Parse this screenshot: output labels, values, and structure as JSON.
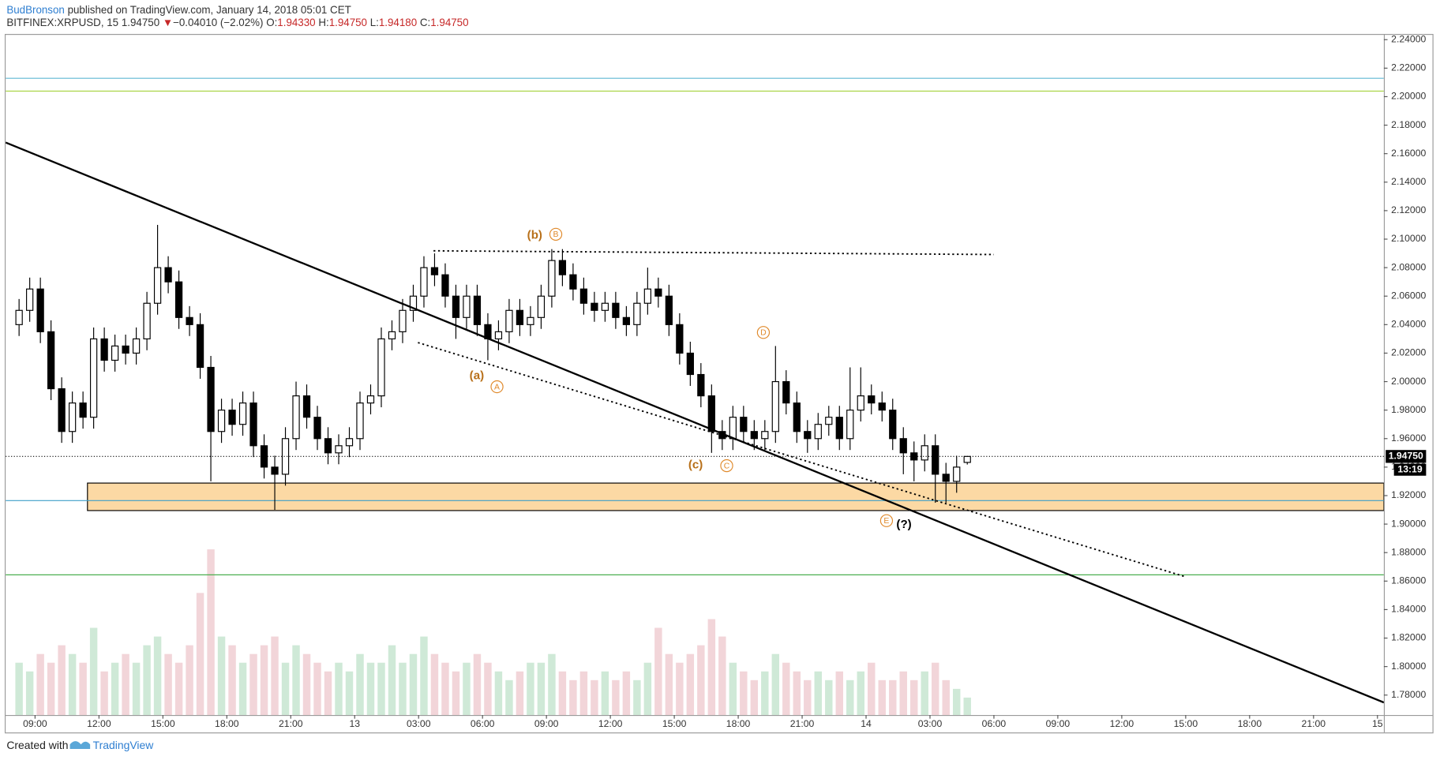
{
  "header": {
    "author": "BudBronson",
    "published": "published on TradingView.com, January 14, 2018 05:01 CET",
    "symbol": "BITFINEX:XRPUSD, 15",
    "last": "1.94750",
    "arrow": "▼",
    "change": "−0.04010 (−2.02%)",
    "ohlc": [
      {
        "label": "O:",
        "value": "1.94330"
      },
      {
        "label": "H:",
        "value": "1.94750"
      },
      {
        "label": "L:",
        "value": "1.94180"
      },
      {
        "label": "C:",
        "value": "1.94750"
      }
    ]
  },
  "footer": {
    "created": "Created with",
    "brand": "TradingView"
  },
  "chart_data": {
    "type": "candlestick",
    "grid": false,
    "xlim": [
      7.62,
      72.3
    ],
    "ylim": [
      1.766,
      2.244
    ],
    "vlim": [
      0,
      100
    ],
    "xticks": [
      {
        "value": 9,
        "label": "09:00"
      },
      {
        "value": 12,
        "label": "12:00"
      },
      {
        "value": 15,
        "label": "15:00"
      },
      {
        "value": 18,
        "label": "18:00"
      },
      {
        "value": 21,
        "label": "21:00"
      },
      {
        "value": 24,
        "label": "13"
      },
      {
        "value": 27,
        "label": "03:00"
      },
      {
        "value": 30,
        "label": "06:00"
      },
      {
        "value": 33,
        "label": "09:00"
      },
      {
        "value": 36,
        "label": "12:00"
      },
      {
        "value": 39,
        "label": "15:00"
      },
      {
        "value": 42,
        "label": "18:00"
      },
      {
        "value": 45,
        "label": "21:00"
      },
      {
        "value": 48,
        "label": "14"
      },
      {
        "value": 51,
        "label": "03:00"
      },
      {
        "value": 54,
        "label": "06:00"
      },
      {
        "value": 57,
        "label": "09:00"
      },
      {
        "value": 60,
        "label": "12:00"
      },
      {
        "value": 63,
        "label": "15:00"
      },
      {
        "value": 66,
        "label": "18:00"
      },
      {
        "value": 69,
        "label": "21:00"
      },
      {
        "value": 72,
        "label": "15"
      }
    ],
    "yticks": [
      {
        "value": 2.24,
        "label": "2.24000"
      },
      {
        "value": 2.22,
        "label": "2.22000"
      },
      {
        "value": 2.2,
        "label": "2.20000"
      },
      {
        "value": 2.18,
        "label": "2.18000"
      },
      {
        "value": 2.16,
        "label": "2.16000"
      },
      {
        "value": 2.14,
        "label": "2.14000"
      },
      {
        "value": 2.12,
        "label": "2.12000"
      },
      {
        "value": 2.1,
        "label": "2.10000"
      },
      {
        "value": 2.08,
        "label": "2.08000"
      },
      {
        "value": 2.06,
        "label": "2.06000"
      },
      {
        "value": 2.04,
        "label": "2.04000"
      },
      {
        "value": 2.02,
        "label": "2.02000"
      },
      {
        "value": 2,
        "label": "2.00000"
      },
      {
        "value": 1.98,
        "label": "1.98000"
      },
      {
        "value": 1.96,
        "label": "1.96000"
      },
      {
        "value": 1.94,
        "label": "1.94000"
      },
      {
        "value": 1.92,
        "label": "1.92000"
      },
      {
        "value": 1.9,
        "label": "1.90000"
      },
      {
        "value": 1.88,
        "label": "1.88000"
      },
      {
        "value": 1.86,
        "label": "1.86000"
      },
      {
        "value": 1.84,
        "label": "1.84000"
      },
      {
        "value": 1.82,
        "label": "1.82000"
      },
      {
        "value": 1.8,
        "label": "1.80000"
      },
      {
        "value": 1.78,
        "label": "1.78000"
      }
    ],
    "up_color": "#ffffff",
    "down_color": "#000000",
    "wick_color": "#000000",
    "vol_up_color": "#cfe9d7",
    "vol_down_color": "#f2d5d9",
    "x": [
      8.25,
      8.75,
      9.25,
      9.75,
      10.25,
      10.75,
      11.25,
      11.75,
      12.25,
      12.75,
      13.25,
      13.75,
      14.25,
      14.75,
      15.25,
      15.75,
      16.25,
      16.75,
      17.25,
      17.75,
      18.25,
      18.75,
      19.25,
      19.75,
      20.25,
      20.75,
      21.25,
      21.75,
      22.25,
      22.75,
      23.25,
      23.75,
      24.25,
      24.75,
      25.25,
      25.75,
      26.25,
      26.75,
      27.25,
      27.75,
      28.25,
      28.75,
      29.25,
      29.75,
      30.25,
      30.75,
      31.25,
      31.75,
      32.25,
      32.75,
      33.25,
      33.75,
      34.25,
      34.75,
      35.25,
      35.75,
      36.25,
      36.75,
      37.25,
      37.75,
      38.25,
      38.75,
      39.25,
      39.75,
      40.25,
      40.75,
      41.25,
      41.75,
      42.25,
      42.75,
      43.25,
      43.75,
      44.25,
      44.75,
      45.25,
      45.75,
      46.25,
      46.75,
      47.25,
      47.75,
      48.25,
      48.75,
      49.25,
      49.75,
      50.25,
      50.75,
      51.25,
      51.75,
      52.25,
      52.75
    ],
    "open": [
      2.04,
      2.05,
      2.065,
      2.035,
      1.995,
      1.965,
      1.985,
      1.975,
      2.03,
      2.015,
      2.025,
      2.02,
      2.03,
      2.055,
      2.08,
      2.07,
      2.045,
      2.04,
      2.01,
      1.965,
      1.98,
      1.97,
      1.985,
      1.955,
      1.94,
      1.935,
      1.96,
      1.99,
      1.975,
      1.96,
      1.95,
      1.955,
      1.96,
      1.985,
      1.99,
      2.03,
      2.035,
      2.05,
      2.06,
      2.08,
      2.075,
      2.06,
      2.045,
      2.06,
      2.04,
      2.03,
      2.035,
      2.05,
      2.04,
      2.045,
      2.06,
      2.085,
      2.075,
      2.065,
      2.055,
      2.05,
      2.055,
      2.045,
      2.04,
      2.055,
      2.065,
      2.06,
      2.04,
      2.02,
      2.005,
      1.99,
      1.965,
      1.96,
      1.975,
      1.965,
      1.96,
      1.965,
      2.0,
      1.985,
      1.965,
      1.96,
      1.97,
      1.975,
      1.96,
      1.98,
      1.99,
      1.985,
      1.98,
      1.96,
      1.95,
      1.945,
      1.955,
      1.935,
      1.93,
      1.9433
    ],
    "high": [
      2.058,
      2.073,
      2.073,
      2.043,
      2.003,
      1.993,
      1.993,
      2.038,
      2.038,
      2.033,
      2.033,
      2.038,
      2.063,
      2.11,
      2.088,
      2.078,
      2.053,
      2.048,
      2.018,
      1.988,
      1.988,
      1.993,
      1.993,
      1.963,
      1.948,
      1.968,
      2.0,
      1.998,
      1.983,
      1.968,
      1.963,
      1.968,
      1.993,
      1.998,
      2.038,
      2.043,
      2.058,
      2.068,
      2.088,
      2.09,
      2.083,
      2.068,
      2.068,
      2.068,
      2.048,
      2.043,
      2.058,
      2.058,
      2.053,
      2.068,
      2.093,
      2.093,
      2.083,
      2.073,
      2.063,
      2.063,
      2.063,
      2.053,
      2.063,
      2.08,
      2.073,
      2.068,
      2.048,
      2.028,
      2.013,
      1.998,
      1.973,
      1.983,
      1.983,
      1.973,
      1.973,
      2.025,
      2.008,
      1.993,
      1.973,
      1.978,
      1.983,
      1.983,
      2.01,
      2.01,
      1.998,
      1.993,
      1.988,
      1.968,
      1.958,
      1.963,
      1.963,
      1.943,
      1.948,
      1.9475
    ],
    "low": [
      2.032,
      2.042,
      2.027,
      1.987,
      1.957,
      1.957,
      1.967,
      1.967,
      2.007,
      2.007,
      2.012,
      2.012,
      2.022,
      2.047,
      2.062,
      2.037,
      2.032,
      2.002,
      1.93,
      1.957,
      1.962,
      1.962,
      1.947,
      1.932,
      1.91,
      1.927,
      1.952,
      1.967,
      1.952,
      1.942,
      1.942,
      1.947,
      1.952,
      1.977,
      1.982,
      2.022,
      2.027,
      2.042,
      2.052,
      2.067,
      2.052,
      2.03,
      2.037,
      2.032,
      2.015,
      2.022,
      2.027,
      2.032,
      2.032,
      2.037,
      2.052,
      2.067,
      2.057,
      2.047,
      2.042,
      2.042,
      2.037,
      2.032,
      2.032,
      2.047,
      2.052,
      2.032,
      2.012,
      1.997,
      1.982,
      1.95,
      1.952,
      1.952,
      1.957,
      1.952,
      1.952,
      1.957,
      1.977,
      1.957,
      1.95,
      1.952,
      1.962,
      1.952,
      1.952,
      1.972,
      1.977,
      1.972,
      1.952,
      1.935,
      1.93,
      1.937,
      1.915,
      1.915,
      1.922,
      1.9418
    ],
    "close": [
      2.05,
      2.065,
      2.035,
      1.995,
      1.965,
      1.985,
      1.975,
      2.03,
      2.015,
      2.025,
      2.02,
      2.03,
      2.055,
      2.08,
      2.07,
      2.045,
      2.04,
      2.01,
      1.965,
      1.98,
      1.97,
      1.985,
      1.955,
      1.94,
      1.935,
      1.96,
      1.99,
      1.975,
      1.96,
      1.95,
      1.955,
      1.96,
      1.985,
      1.99,
      2.03,
      2.035,
      2.05,
      2.06,
      2.08,
      2.075,
      2.06,
      2.045,
      2.06,
      2.04,
      2.03,
      2.035,
      2.05,
      2.04,
      2.045,
      2.06,
      2.085,
      2.075,
      2.065,
      2.055,
      2.05,
      2.055,
      2.045,
      2.04,
      2.055,
      2.065,
      2.06,
      2.04,
      2.02,
      2.005,
      1.99,
      1.965,
      1.96,
      1.975,
      1.965,
      1.96,
      1.965,
      2.0,
      1.985,
      1.965,
      1.96,
      1.97,
      1.975,
      1.96,
      1.98,
      1.99,
      1.985,
      1.98,
      1.96,
      1.95,
      1.945,
      1.955,
      1.935,
      1.93,
      1.94,
      1.9475
    ],
    "volume": [
      30,
      25,
      35,
      30,
      40,
      35,
      30,
      50,
      25,
      30,
      35,
      30,
      40,
      45,
      35,
      30,
      40,
      70,
      95,
      45,
      40,
      30,
      35,
      40,
      45,
      30,
      40,
      35,
      30,
      25,
      30,
      25,
      35,
      30,
      30,
      40,
      30,
      35,
      45,
      35,
      30,
      25,
      30,
      35,
      30,
      25,
      20,
      25,
      30,
      30,
      35,
      25,
      20,
      25,
      20,
      25,
      20,
      25,
      20,
      30,
      50,
      35,
      30,
      35,
      40,
      55,
      45,
      30,
      25,
      20,
      25,
      35,
      30,
      25,
      20,
      25,
      20,
      25,
      20,
      25,
      30,
      20,
      20,
      25,
      20,
      25,
      30,
      20,
      15,
      10
    ],
    "levels": [
      {
        "value": 2.2129,
        "color": "#5fb8d3"
      },
      {
        "value": 2.2039,
        "color": "#a5d23b"
      },
      {
        "value": 1.9165,
        "color": "#3f9fc8"
      },
      {
        "value": 1.8644,
        "color": "#4caf50"
      }
    ],
    "zone": {
      "x": [
        11.46,
        72.3
      ],
      "y": [
        1.9095,
        1.9288
      ],
      "color": "#fcd9a4"
    },
    "lines": [
      {
        "x": [
          7.62,
          72.3
        ],
        "y": [
          2.1678,
          1.7748
        ],
        "style": "solid",
        "color": "#000000"
      },
      {
        "x": [
          26.97,
          62.97
        ],
        "y": [
          2.0274,
          1.8631
        ],
        "style": "dotted",
        "color": "#000000"
      },
      {
        "x": [
          27.7,
          54.0
        ],
        "y": [
          2.0918,
          2.0892
        ],
        "style": "dotted",
        "color": "#000000"
      }
    ],
    "annotations": [
      {
        "text": "(b)",
        "x": 32.45,
        "y": 2.1028,
        "circled": false,
        "color": "#b8701a"
      },
      {
        "text": "B",
        "x": 33.44,
        "y": 2.1034,
        "circled": true,
        "color": "#e08a2c"
      },
      {
        "text": "(a)",
        "x": 29.73,
        "y": 2.0042,
        "circled": false,
        "color": "#b8701a"
      },
      {
        "text": "A",
        "x": 30.68,
        "y": 1.9964,
        "circled": true,
        "color": "#e08a2c"
      },
      {
        "text": "(c)",
        "x": 40.0,
        "y": 1.9417,
        "circled": false,
        "color": "#b8701a"
      },
      {
        "text": "C",
        "x": 41.46,
        "y": 1.941,
        "circled": true,
        "color": "#e08a2c"
      },
      {
        "text": "D",
        "x": 43.18,
        "y": 2.0345,
        "circled": true,
        "color": "#e08a2c"
      },
      {
        "text": "E",
        "x": 48.96,
        "y": 1.9024,
        "circled": true,
        "color": "#e08a2c"
      },
      {
        "text": "(?)",
        "x": 49.78,
        "y": 1.8998,
        "circled": false,
        "color": "#000000"
      }
    ],
    "last_price": {
      "value": 1.9475,
      "label": "1.94750",
      "countdown": "13:19"
    }
  }
}
